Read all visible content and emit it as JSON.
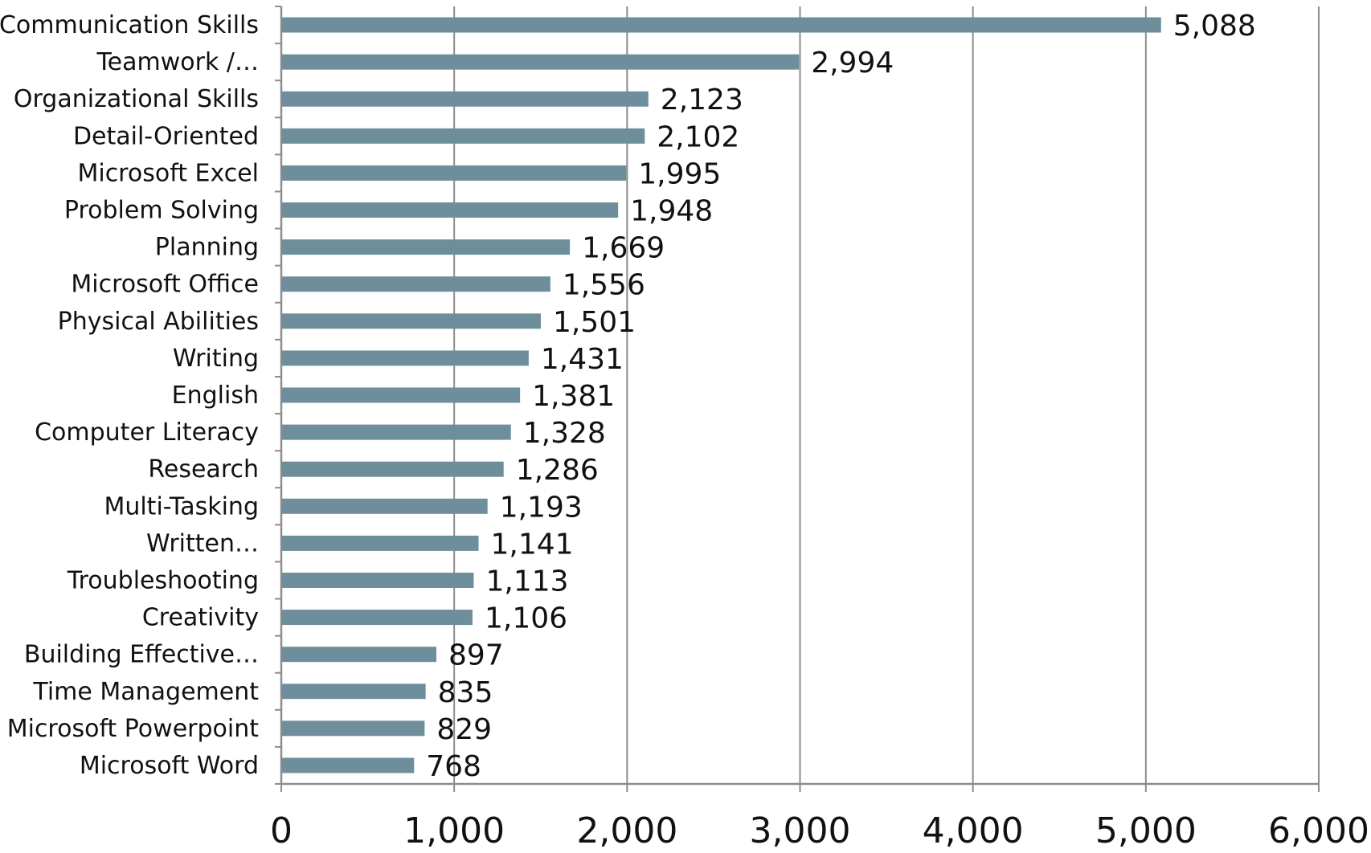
{
  "chart_data": {
    "type": "bar",
    "orientation": "horizontal",
    "title": "",
    "xlabel": "",
    "ylabel": "",
    "categories": [
      "Communication Skills",
      "Teamwork /…",
      "Organizational Skills",
      "Detail-Oriented",
      "Microsoft Excel",
      "Problem Solving",
      "Planning",
      "Microsoft Office",
      "Physical Abilities",
      "Writing",
      "English",
      "Computer Literacy",
      "Research",
      "Multi-Tasking",
      "Written…",
      "Troubleshooting",
      "Creativity",
      "Building Effective…",
      "Time Management",
      "Microsoft Powerpoint",
      "Microsoft Word"
    ],
    "values": [
      5088,
      2994,
      2123,
      2102,
      1995,
      1948,
      1669,
      1556,
      1501,
      1431,
      1381,
      1328,
      1286,
      1193,
      1141,
      1113,
      1106,
      897,
      835,
      829,
      768
    ],
    "value_labels": [
      "5,088",
      "2,994",
      "2,123",
      "2,102",
      "1,995",
      "1,948",
      "1,669",
      "1,556",
      "1,501",
      "1,431",
      "1,381",
      "1,328",
      "1,286",
      "1,193",
      "1,141",
      "1,113",
      "1,106",
      "897",
      "835",
      "829",
      "768"
    ],
    "xlim": [
      0,
      6000
    ],
    "x_ticks": [
      0,
      1000,
      2000,
      3000,
      4000,
      5000,
      6000
    ],
    "x_tick_labels": [
      "0",
      "1,000",
      "2,000",
      "3,000",
      "4,000",
      "5,000",
      "6,000"
    ],
    "grid": "vertical",
    "legend": "none",
    "bar_color": "#6f8e9c",
    "grid_color": "#8c8c8c",
    "text_color": "#111111"
  }
}
